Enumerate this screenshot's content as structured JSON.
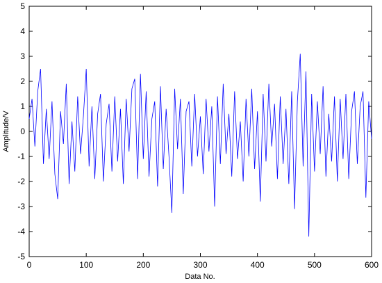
{
  "chart_data": {
    "type": "line",
    "xlabel": "Data No.",
    "ylabel": "Amplitude/V",
    "xlim": [
      0,
      600
    ],
    "xticks": [
      0,
      100,
      200,
      300,
      400,
      500,
      600
    ],
    "ylim": [
      -5,
      5
    ],
    "yticks": [
      -5,
      -4,
      -3,
      -2,
      -1,
      0,
      1,
      2,
      3,
      4,
      5
    ],
    "grid": false,
    "series": [
      {
        "color": "#0000ff",
        "x": [
          0,
          5,
          10,
          15,
          20,
          25,
          30,
          35,
          40,
          45,
          50,
          55,
          60,
          65,
          70,
          75,
          80,
          85,
          90,
          95,
          100,
          105,
          110,
          115,
          120,
          125,
          130,
          135,
          140,
          145,
          150,
          155,
          160,
          165,
          170,
          175,
          180,
          185,
          190,
          195,
          200,
          205,
          210,
          215,
          220,
          225,
          230,
          235,
          240,
          245,
          250,
          255,
          260,
          265,
          270,
          275,
          280,
          285,
          290,
          295,
          300,
          305,
          310,
          315,
          320,
          325,
          330,
          335,
          340,
          345,
          350,
          355,
          360,
          365,
          370,
          375,
          380,
          385,
          390,
          395,
          400,
          405,
          410,
          415,
          420,
          425,
          430,
          435,
          440,
          445,
          450,
          455,
          460,
          465,
          470,
          475,
          480,
          485,
          490,
          495,
          500,
          505,
          510,
          515,
          520,
          525,
          530,
          535,
          540,
          545,
          550,
          555,
          560,
          565,
          570,
          575,
          580,
          585,
          590,
          595,
          600
        ],
        "values": [
          0.5,
          1.3,
          -0.6,
          1.6,
          2.5,
          -1.3,
          0.9,
          -1.1,
          1.2,
          -1.7,
          -2.7,
          0.8,
          -0.5,
          1.9,
          -2.1,
          0.4,
          -1.6,
          1.4,
          -0.9,
          0.6,
          2.5,
          -1.4,
          1.0,
          -1.9,
          0.7,
          1.5,
          -2.0,
          0.3,
          1.1,
          -1.6,
          1.4,
          -1.2,
          0.9,
          -2.1,
          1.3,
          -0.8,
          1.7,
          2.1,
          -1.9,
          2.3,
          -1.1,
          1.6,
          -1.8,
          0.5,
          1.2,
          -2.2,
          1.8,
          -1.5,
          0.9,
          -1.0,
          -3.25,
          1.7,
          -0.7,
          1.3,
          -2.5,
          0.8,
          1.2,
          -1.4,
          1.5,
          -1.0,
          0.6,
          -1.7,
          1.3,
          -0.8,
          1.0,
          -3.0,
          1.4,
          -1.3,
          1.9,
          -0.9,
          0.7,
          -1.8,
          1.6,
          -1.1,
          0.4,
          -2.0,
          1.3,
          -1.0,
          1.7,
          -1.5,
          0.8,
          -2.8,
          1.5,
          -1.2,
          1.9,
          -0.6,
          1.1,
          -1.9,
          1.4,
          -1.3,
          0.9,
          -2.1,
          1.6,
          -3.1,
          1.2,
          3.1,
          -1.4,
          2.4,
          -4.2,
          1.5,
          -1.6,
          1.2,
          -0.9,
          1.8,
          -1.8,
          0.7,
          -1.2,
          1.4,
          -2.0,
          1.3,
          -1.1,
          1.5,
          -1.9,
          0.8,
          1.6,
          -1.3,
          1.0,
          1.6,
          -2.65,
          1.2,
          -0.3
        ]
      }
    ]
  }
}
